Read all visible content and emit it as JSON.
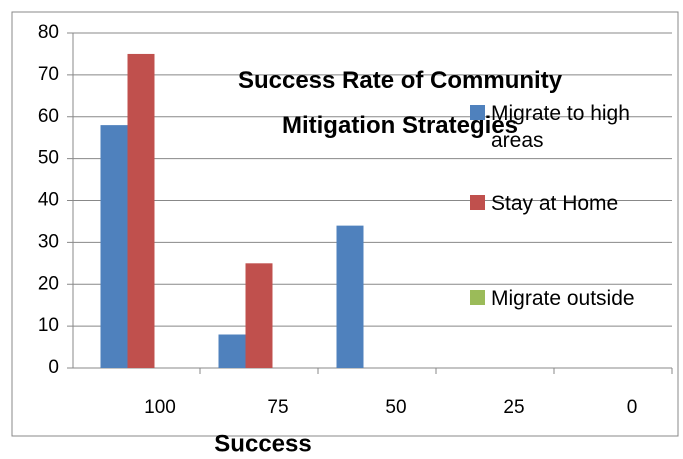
{
  "chart_data": {
    "type": "bar",
    "title": "Success Rate of Community Mitigation Strategies",
    "x_label": "Success",
    "categories": [
      "100",
      "75",
      "50",
      "25",
      "0"
    ],
    "series": [
      {
        "name": "Migrate to high areas",
        "color": "#4f81bd",
        "values": [
          58,
          8,
          34,
          0,
          0
        ]
      },
      {
        "name": "Stay at Home",
        "color": "#c0504d",
        "values": [
          75,
          25,
          0,
          0,
          0
        ]
      },
      {
        "name": "Migrate outside",
        "color": "#9bbb59",
        "values": [
          0,
          0,
          0,
          0,
          0
        ]
      }
    ],
    "ylim": [
      0,
      80
    ],
    "yticks": [
      0,
      10,
      20,
      30,
      40,
      50,
      60,
      70,
      80
    ],
    "grid": true,
    "legend": "right"
  }
}
